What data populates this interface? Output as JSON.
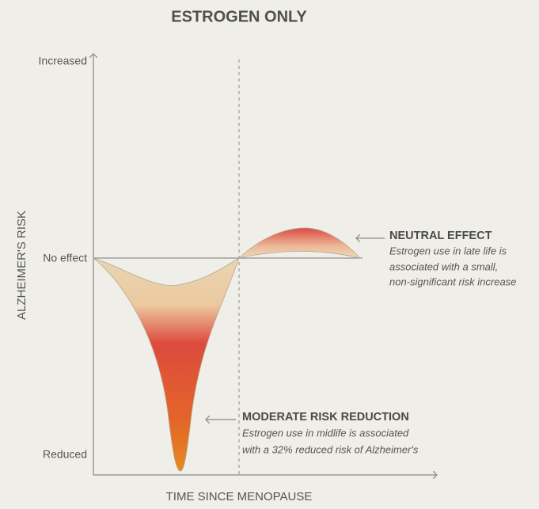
{
  "title": "ESTROGEN ONLY",
  "y_axis": {
    "title": "ALZHEIMER'S RISK",
    "labels": [
      "Increased",
      "No effect",
      "Reduced"
    ]
  },
  "x_axis": {
    "title": "TIME SINCE MENOPAUSE"
  },
  "annotations": [
    {
      "heading": "NEUTRAL EFFECT",
      "lines": [
        "Estrogen use in late life is",
        "associated with a small,",
        "non-significant risk increase"
      ]
    },
    {
      "heading": "MODERATE RISK REDUCTION",
      "lines": [
        "Estrogen use in midlife is associated",
        "with a 32% reduced risk of Alzheimer's"
      ]
    }
  ]
}
